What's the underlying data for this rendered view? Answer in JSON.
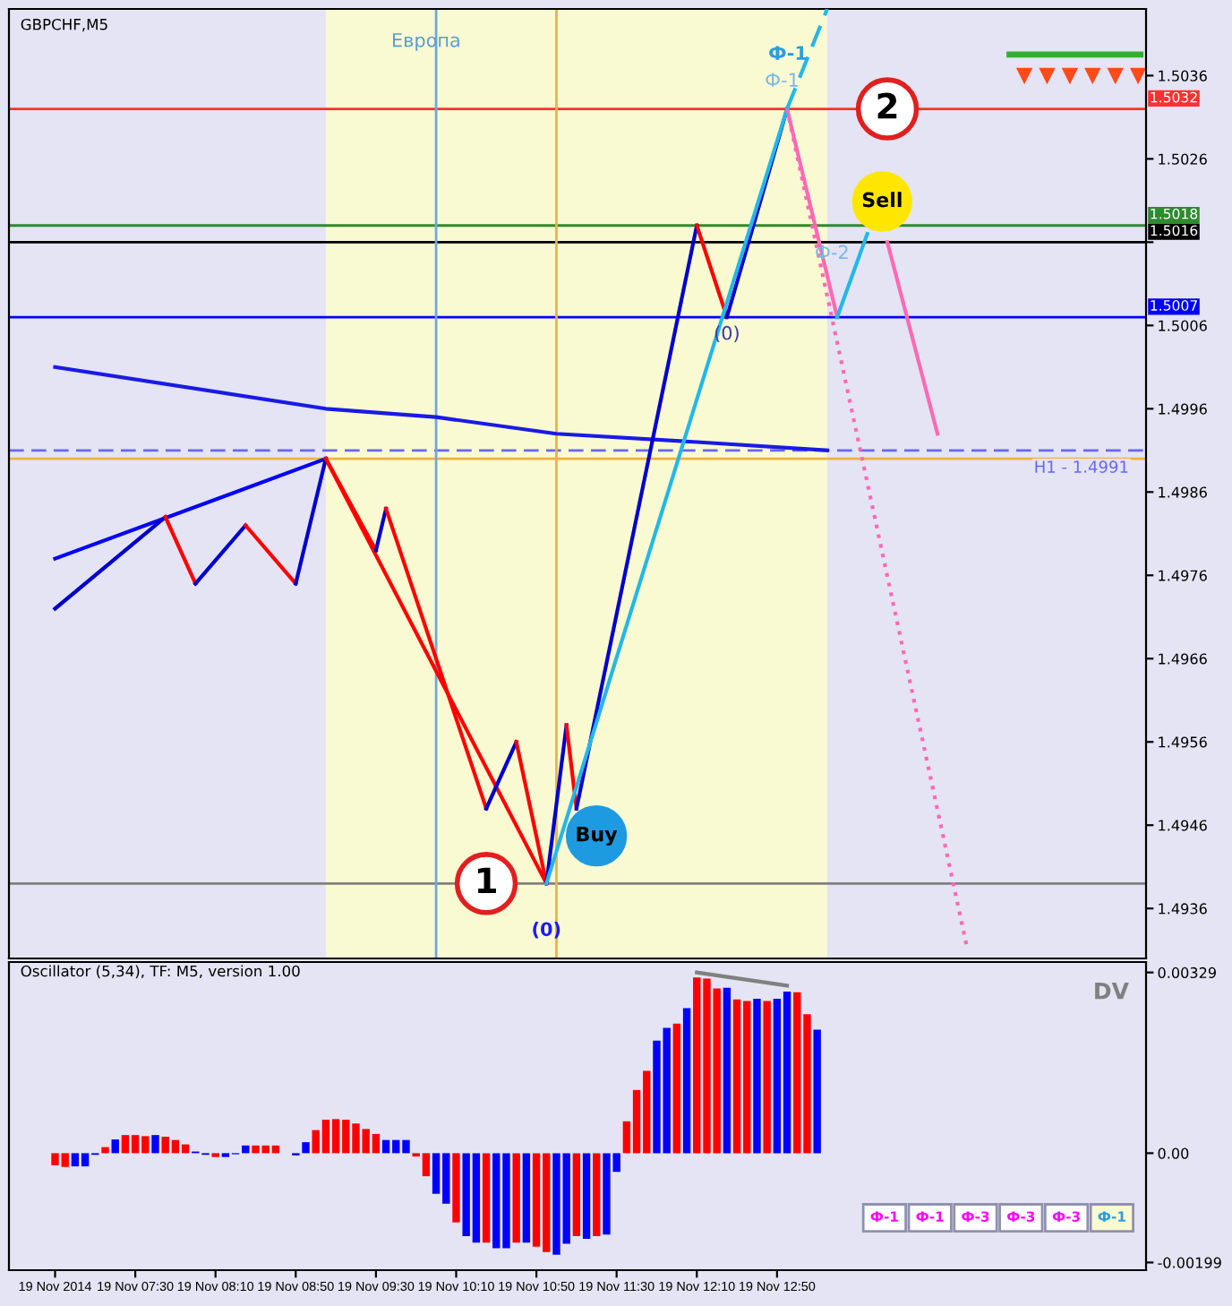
{
  "chart_data": [
    {
      "type": "line",
      "title": "GBPCHF,M5",
      "xlim": [
        "2014-11-19T06:27",
        "2014-11-19T15:54"
      ],
      "ylim": [
        1.493,
        1.5044
      ],
      "yticks": [
        1.4936,
        1.4946,
        1.4956,
        1.4966,
        1.4976,
        1.4986,
        1.4996,
        1.5006,
        {
          "value": 1.5016,
          "label": null
        },
        1.5026,
        1.5036
      ],
      "bands": [
        {
          "axis": "x",
          "from": "2014-11-19T09:05",
          "to": "2014-11-19T13:15",
          "label": "Европа",
          "color": "#fafad2"
        }
      ],
      "ref_lines": [
        {
          "axis": "y",
          "value": 1.5032,
          "label": "1.5032",
          "color": "#ff3030"
        },
        {
          "axis": "y",
          "value": 1.5018,
          "label": "1.5018",
          "color": "#2e8b2e"
        },
        {
          "axis": "y",
          "value": 1.5016,
          "label": "1.5016",
          "color": "#000000"
        },
        {
          "axis": "y",
          "value": 1.5007,
          "label": "1.5007",
          "color": "#0000ff"
        },
        {
          "axis": "y",
          "value": 1.4991,
          "label": "H1 - 1.4991",
          "color": "#6666ff",
          "line_style": "dashed"
        },
        {
          "axis": "y",
          "value": 1.499,
          "color": "#f0b040"
        },
        {
          "axis": "y",
          "value": 1.4939,
          "color": "#808080"
        },
        {
          "axis": "x",
          "value": "2014-11-19T10:00",
          "color": "#6fa8dc"
        },
        {
          "axis": "x",
          "value": "2014-11-19T11:00",
          "color": "#f0b040"
        }
      ],
      "series": [
        {
          "x": [
            "2014-11-19T06:50",
            "2014-11-19T09:05"
          ],
          "values": [
            1.4978,
            1.499
          ],
          "color": "#0000ff"
        },
        {
          "x": [
            "2014-11-19T09:05",
            "2014-11-19T10:55"
          ],
          "values": [
            1.499,
            1.4939
          ],
          "color": "#ff0000"
        },
        {
          "x": [
            "2014-11-19T06:50",
            "2014-11-19T09:05",
            "2014-11-19T10:00",
            "2014-11-19T11:00",
            "2014-11-19T12:10",
            "2014-11-19T13:15"
          ],
          "values": [
            1.5001,
            1.4996,
            1.4995,
            1.4993,
            1.4992,
            1.4991
          ],
          "color": "#1a1ae6"
        },
        {
          "x": [
            "2014-11-19T06:50",
            "2014-11-19T07:45"
          ],
          "values": [
            1.4972,
            1.4983
          ],
          "color": "#0000cd"
        },
        {
          "x": [
            "2014-11-19T07:45",
            "2014-11-19T08:00"
          ],
          "values": [
            1.4983,
            1.4975
          ],
          "color": "#ff0000"
        },
        {
          "x": [
            "2014-11-19T08:00",
            "2014-11-19T08:25"
          ],
          "values": [
            1.4975,
            1.4982
          ],
          "color": "#0000cd"
        },
        {
          "x": [
            "2014-11-19T08:25",
            "2014-11-19T08:50"
          ],
          "values": [
            1.4982,
            1.4975
          ],
          "color": "#ff0000"
        },
        {
          "x": [
            "2014-11-19T08:50",
            "2014-11-19T09:05"
          ],
          "values": [
            1.4975,
            1.499
          ],
          "color": "#0000cd"
        },
        {
          "x": [
            "2014-11-19T09:05",
            "2014-11-19T09:30"
          ],
          "values": [
            1.499,
            1.4979
          ],
          "color": "#ff0000"
        },
        {
          "x": [
            "2014-11-19T09:30",
            "2014-11-19T09:35"
          ],
          "values": [
            1.4979,
            1.4984
          ],
          "color": "#0000cd"
        },
        {
          "x": [
            "2014-11-19T09:35",
            "2014-11-19T10:25"
          ],
          "values": [
            1.4984,
            1.4948
          ],
          "color": "#ff0000"
        },
        {
          "x": [
            "2014-11-19T10:25",
            "2014-11-19T10:40"
          ],
          "values": [
            1.4948,
            1.4956
          ],
          "color": "#0000cd"
        },
        {
          "x": [
            "2014-11-19T10:40",
            "2014-11-19T10:55"
          ],
          "values": [
            1.4956,
            1.4939
          ],
          "color": "#ff0000"
        },
        {
          "x": [
            "2014-11-19T10:55",
            "2014-11-19T11:05"
          ],
          "values": [
            1.4939,
            1.4958
          ],
          "color": "#0000cd"
        },
        {
          "x": [
            "2014-11-19T11:05",
            "2014-11-19T11:10"
          ],
          "values": [
            1.4958,
            1.4948
          ],
          "color": "#ff0000"
        },
        {
          "x": [
            "2014-11-19T11:10",
            "2014-11-19T12:10"
          ],
          "values": [
            1.4948,
            1.5018
          ],
          "color": "#0000cd"
        },
        {
          "x": [
            "2014-11-19T12:10",
            "2014-11-19T12:25"
          ],
          "values": [
            1.5018,
            1.5007
          ],
          "color": "#ff0000"
        },
        {
          "x": [
            "2014-11-19T12:25",
            "2014-11-19T12:55"
          ],
          "values": [
            1.5007,
            1.5032
          ],
          "color": "#0000cd"
        },
        {
          "x": [
            "2014-11-19T12:55",
            "2014-11-19T13:20"
          ],
          "values": [
            1.5032,
            1.5007
          ],
          "color": "#ff69b4"
        },
        {
          "x": [
            "2014-11-19T10:55",
            "2014-11-19T12:55"
          ],
          "values": [
            1.4939,
            1.5032
          ],
          "color": "#22b8e8"
        },
        {
          "x": [
            "2014-11-19T12:55",
            "2014-11-19T13:15"
          ],
          "values": [
            1.5032,
            1.5044
          ],
          "color": "#22b8e8",
          "line_style": "dashed"
        },
        {
          "x": [
            "2014-11-19T13:20",
            "2014-11-19T13:35"
          ],
          "values": [
            1.5007,
            1.5017
          ],
          "color": "#22b8e8"
        },
        {
          "x": [
            "2014-11-19T12:55",
            "2014-11-19T14:25"
          ],
          "values": [
            1.5032,
            1.4931
          ],
          "color": "#ff69b4",
          "line_style": "dotted"
        },
        {
          "x": [
            "2014-11-19T13:45",
            "2014-11-19T14:10"
          ],
          "values": [
            1.5016,
            1.4993
          ],
          "color": "#ff69b4"
        }
      ],
      "annotations": [
        {
          "text": "2",
          "x": "2014-11-19T13:45",
          "y": 1.5032
        },
        {
          "text": "Sell",
          "x": "2014-11-19T13:35",
          "y": 1.5017
        },
        {
          "text": "Buy",
          "x": "2014-11-19T11:10",
          "y": 1.4948
        },
        {
          "text": "1",
          "x": "2014-11-19T10:25",
          "y": 1.4939
        },
        {
          "text": "(0)",
          "x": "2014-11-19T10:55",
          "y": 1.4939
        },
        {
          "text": "(0)",
          "x": "2014-11-19T12:25",
          "y": 1.5007
        },
        "Ф-1",
        {
          "text": "Ф-1",
          "x": "2014-11-19T12:55",
          "y": 1.5032
        },
        {
          "text": "Ф-2",
          "x": "2014-11-19T13:10",
          "y": 1.5017
        }
      ]
    },
    {
      "type": "bar",
      "title": "Oscillator (5,34), TF: M5, version 1.00",
      "xlim": [
        "2014-11-19T06:27",
        "2014-11-19T15:54"
      ],
      "ylim": [
        -0.00213,
        0.00348
      ],
      "xticks": [
        {
          "value": "2014-11-19T06:50",
          "label": "19 Nov 2014"
        },
        {
          "value": "2014-11-19T07:30",
          "label": "19 Nov 07:30"
        },
        {
          "value": "2014-11-19T08:10",
          "label": "19 Nov 08:10"
        },
        {
          "value": "2014-11-19T08:50",
          "label": "19 Nov 08:50"
        },
        {
          "value": "2014-11-19T09:30",
          "label": "19 Nov 09:30"
        },
        {
          "value": "2014-11-19T10:10",
          "label": "19 Nov 10:10"
        },
        {
          "value": "2014-11-19T10:50",
          "label": "19 Nov 10:50"
        },
        {
          "value": "2014-11-19T11:30",
          "label": "19 Nov 11:30"
        },
        {
          "value": "2014-11-19T12:10",
          "label": "19 Nov 12:10"
        },
        {
          "value": "2014-11-19T12:50",
          "label": "19 Nov 12:50"
        }
      ],
      "yticks": [
        0.00329,
        {
          "value": 0,
          "label": "0.00"
        },
        -0.00199
      ],
      "series": [
        {
          "x": [
            "2014-11-19T06:50",
            "2014-11-19T06:55",
            "2014-11-19T07:00",
            "2014-11-19T07:05",
            "2014-11-19T07:10",
            "2014-11-19T07:15",
            "2014-11-19T07:20",
            "2014-11-19T07:25",
            "2014-11-19T07:30",
            "2014-11-19T07:35",
            "2014-11-19T07:40",
            "2014-11-19T07:45",
            "2014-11-19T07:50",
            "2014-11-19T07:55",
            "2014-11-19T08:00",
            "2014-11-19T08:05",
            "2014-11-19T08:10",
            "2014-11-19T08:15",
            "2014-11-19T08:20",
            "2014-11-19T08:25",
            "2014-11-19T08:30",
            "2014-11-19T08:35",
            "2014-11-19T08:40",
            "2014-11-19T08:45",
            "2014-11-19T08:50",
            "2014-11-19T08:55",
            "2014-11-19T09:00",
            "2014-11-19T09:05",
            "2014-11-19T09:10",
            "2014-11-19T09:15",
            "2014-11-19T09:20",
            "2014-11-19T09:25",
            "2014-11-19T09:30",
            "2014-11-19T09:35",
            "2014-11-19T09:40",
            "2014-11-19T09:45",
            "2014-11-19T09:50",
            "2014-11-19T09:55",
            "2014-11-19T10:00",
            "2014-11-19T10:05",
            "2014-11-19T10:10",
            "2014-11-19T10:15",
            "2014-11-19T10:20",
            "2014-11-19T10:25",
            "2014-11-19T10:30",
            "2014-11-19T10:35",
            "2014-11-19T10:40",
            "2014-11-19T10:45",
            "2014-11-19T10:50",
            "2014-11-19T10:55",
            "2014-11-19T11:00",
            "2014-11-19T11:05",
            "2014-11-19T11:10",
            "2014-11-19T11:15",
            "2014-11-19T11:20",
            "2014-11-19T11:25",
            "2014-11-19T11:30",
            "2014-11-19T11:35",
            "2014-11-19T11:40",
            "2014-11-19T11:45",
            "2014-11-19T11:50",
            "2014-11-19T11:55",
            "2014-11-19T12:00",
            "2014-11-19T12:05",
            "2014-11-19T12:10",
            "2014-11-19T12:15",
            "2014-11-19T12:20",
            "2014-11-19T12:25",
            "2014-11-19T12:30",
            "2014-11-19T12:35",
            "2014-11-19T12:40",
            "2014-11-19T12:45",
            "2014-11-19T12:50",
            "2014-11-19T12:55",
            "2014-11-19T13:00",
            "2014-11-19T13:05",
            "2014-11-19T13:10"
          ],
          "values": [
            -0.00022,
            -0.00025,
            -0.00024,
            -0.00024,
            -3e-05,
            0.00011,
            0.00025,
            0.00033,
            0.00033,
            0.00031,
            0.00033,
            0.0003,
            0.00024,
            0.00016,
            3e-05,
            -3e-05,
            -7e-05,
            -7e-05,
            -2e-05,
            0.00014,
            0.00014,
            0.00014,
            0.00014,
            null,
            -4e-05,
            0.0002,
            0.00042,
            0.00061,
            0.00062,
            0.00061,
            0.00054,
            0.00044,
            0.00035,
            0.00024,
            0.00024,
            0.00024,
            -6e-05,
            -0.00042,
            -0.00074,
            -0.00092,
            -0.00126,
            -0.00151,
            -0.00163,
            -0.00163,
            -0.00173,
            -0.00173,
            -0.00163,
            -0.00163,
            -0.0017,
            -0.0018,
            -0.00185,
            -0.00165,
            -0.00151,
            -0.00156,
            -0.00151,
            -0.00148,
            -0.00034,
            0.00058,
            0.00115,
            0.0015,
            0.00205,
            0.00228,
            0.00236,
            0.00264,
            0.0032,
            0.00318,
            0.003,
            0.00301,
            0.0028,
            0.00277,
            0.00281,
            0.00277,
            0.00281,
            0.00294,
            0.00293,
            0.00253,
            0.00225
          ],
          "colors": [
            "#ff0000",
            "#ff0000",
            "#0000ff",
            "#0000ff",
            "#0000ff",
            "#ff0000",
            "#0000ff",
            "#ff0000",
            "#ff0000",
            "#ff0000",
            "#0000ff",
            "#ff0000",
            "#ff0000",
            "#ff0000",
            "#0000ff",
            "#0000ff",
            "#ff0000",
            "#0000ff",
            "#0000ff",
            "#0000ff",
            "#ff0000",
            "#ff0000",
            "#ff0000",
            "#ff0000",
            "#0000ff",
            "#0000ff",
            "#ff0000",
            "#ff0000",
            "#ff0000",
            "#ff0000",
            "#ff0000",
            "#ff0000",
            "#ff0000",
            "#0000ff",
            "#0000ff",
            "#0000ff",
            "#ff0000",
            "#ff0000",
            "#0000ff",
            "#0000ff",
            "#ff0000",
            "#0000ff",
            "#0000ff",
            "#ff0000",
            "#0000ff",
            "#0000ff",
            "#ff0000",
            "#0000ff",
            "#ff0000",
            "#ff0000",
            "#0000ff",
            "#0000ff",
            "#ff0000",
            "#0000ff",
            "#ff0000",
            "#0000ff",
            "#0000ff",
            "#ff0000",
            "#ff0000",
            "#ff0000",
            "#0000ff",
            "#0000ff",
            "#ff0000",
            "#0000ff",
            "#ff0000",
            "#ff0000",
            "#ff0000",
            "#0000ff",
            "#ff0000",
            "#ff0000",
            "#0000ff",
            "#ff0000",
            "#0000ff",
            "#0000ff",
            "#ff0000",
            "#ff0000",
            "#0000ff"
          ]
        },
        {
          "type": "line",
          "x": [
            "2014-11-19T12:10",
            "2014-11-19T12:55"
          ],
          "values": [
            0.00329,
            0.00305
          ],
          "color": "#808080"
        }
      ],
      "annotations": [
        "DV",
        "Ф-1",
        "Ф-1",
        "Ф-3",
        "Ф-3",
        "Ф-3",
        "Ф-1"
      ]
    }
  ]
}
